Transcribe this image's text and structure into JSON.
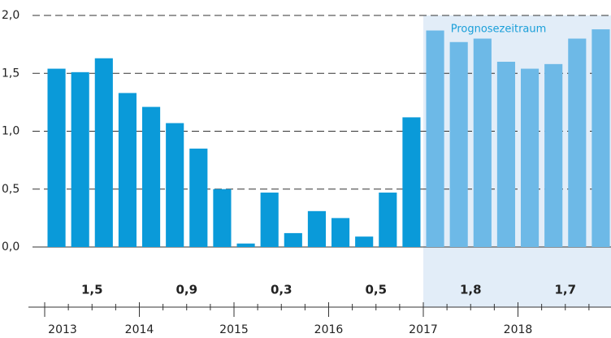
{
  "chart_data": {
    "type": "bar",
    "x": [
      2013.125,
      2013.375,
      2013.625,
      2013.875,
      2014.125,
      2014.375,
      2014.625,
      2014.875,
      2015.125,
      2015.375,
      2015.625,
      2015.875,
      2016.125,
      2016.375,
      2016.625,
      2016.875,
      2017.125,
      2017.375,
      2017.625,
      2017.875,
      2018.125,
      2018.375,
      2018.625,
      2018.875
    ],
    "values": [
      1.54,
      1.51,
      1.63,
      1.33,
      1.21,
      1.07,
      0.85,
      0.5,
      0.03,
      0.47,
      0.12,
      0.31,
      0.25,
      0.09,
      0.47,
      1.12,
      1.87,
      1.77,
      1.8,
      1.6,
      1.54,
      1.58,
      1.8,
      1.88
    ],
    "color": "#0a9ad9",
    "xlim": [
      2013,
      2019
    ],
    "xticks": [
      2013,
      2014,
      2015,
      2016,
      2017,
      2018
    ],
    "ylim": [
      0,
      2
    ],
    "yticks": [
      {
        "value": 0,
        "label": "0,0"
      },
      {
        "value": 0.5,
        "label": "0,5"
      },
      {
        "value": 1,
        "label": "1,0"
      },
      {
        "value": 1.5,
        "label": "1,5"
      },
      {
        "value": 2,
        "label": "2,0"
      }
    ],
    "grid": true,
    "annual_values": [
      1.5,
      0.9,
      0.3,
      0.5,
      1.8,
      1.7
    ],
    "annual_value_labels": [
      "1,5",
      "0,9",
      "0,3",
      "0,5",
      "1,8",
      "1,7"
    ],
    "forecast": {
      "label": "Prognosezeitraum",
      "start": 2017,
      "color": "#6db9e7",
      "shade": "#e2edf8",
      "label_color": "#1a9fd9"
    }
  }
}
